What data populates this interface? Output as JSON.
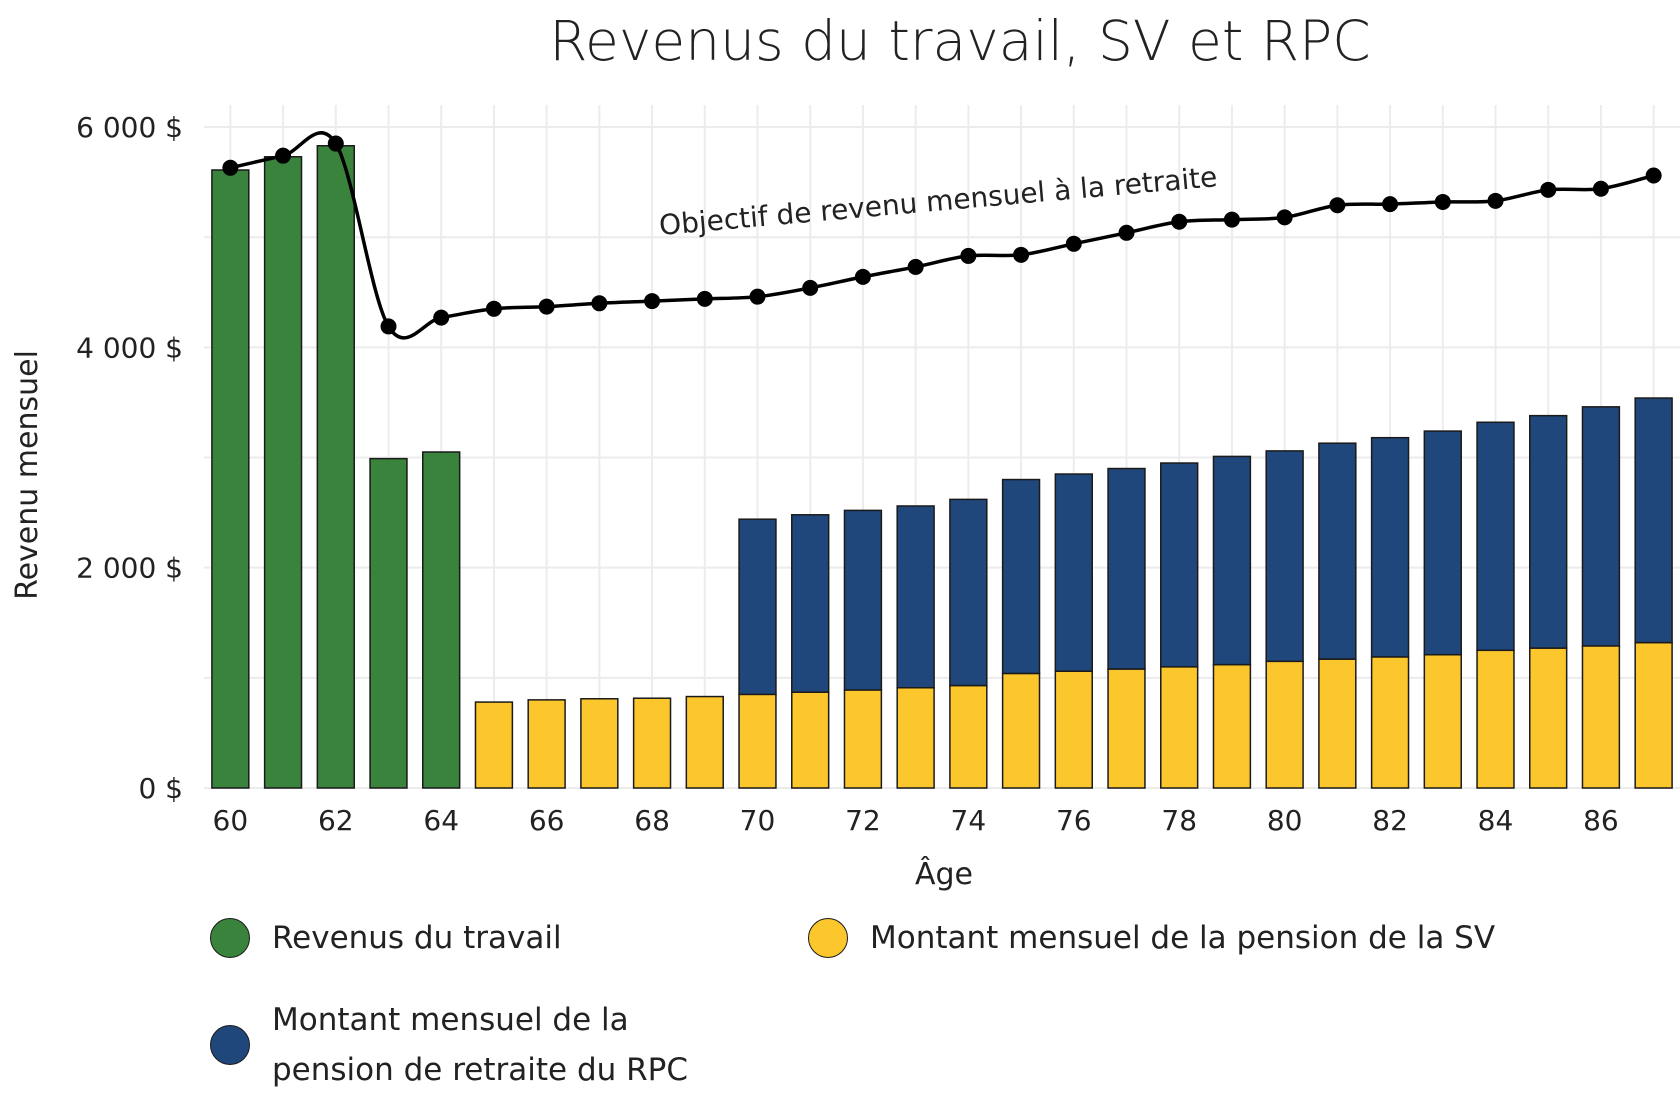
{
  "chart_data": {
    "type": "bar",
    "stacked": true,
    "title": "Revenus du travail, SV et RPC",
    "xlabel": "Âge",
    "ylabel": "Revenu mensuel",
    "xlim": [
      59.5,
      87.5
    ],
    "ylim": [
      0,
      6200
    ],
    "x_ticks": [
      60,
      62,
      64,
      66,
      68,
      70,
      72,
      74,
      76,
      78,
      80,
      82,
      84,
      86
    ],
    "y_ticks": [
      {
        "value": 0,
        "label": "0 $"
      },
      {
        "value": 2000,
        "label": "2 000 $"
      },
      {
        "value": 4000,
        "label": "4 000 $"
      },
      {
        "value": 6000,
        "label": "6 000 $"
      }
    ],
    "grid": true,
    "legend_position": "bottom",
    "categories": [
      60,
      61,
      62,
      63,
      64,
      65,
      66,
      67,
      68,
      69,
      70,
      71,
      72,
      73,
      74,
      75,
      76,
      77,
      78,
      79,
      80,
      81,
      82,
      83,
      84,
      85,
      86,
      87
    ],
    "series": [
      {
        "name": "Revenus du travail",
        "color": "#3a833c",
        "values": [
          5610,
          5730,
          5830,
          2990,
          3050,
          0,
          0,
          0,
          0,
          0,
          0,
          0,
          0,
          0,
          0,
          0,
          0,
          0,
          0,
          0,
          0,
          0,
          0,
          0,
          0,
          0,
          0,
          0
        ]
      },
      {
        "name": "Montant mensuel de la pension de la SV",
        "color": "#fcc62d",
        "values": [
          0,
          0,
          0,
          0,
          0,
          780,
          800,
          810,
          815,
          830,
          850,
          870,
          890,
          910,
          930,
          1040,
          1060,
          1080,
          1100,
          1120,
          1150,
          1170,
          1190,
          1210,
          1250,
          1270,
          1290,
          1320
        ]
      },
      {
        "name": "Montant mensuel de la pension de retraite du RPC",
        "color": "#20477b",
        "values": [
          0,
          0,
          0,
          0,
          0,
          0,
          0,
          0,
          0,
          0,
          1590,
          1610,
          1630,
          1650,
          1690,
          1760,
          1790,
          1820,
          1850,
          1890,
          1910,
          1960,
          1990,
          2030,
          2070,
          2110,
          2170,
          2220
        ]
      }
    ],
    "line": {
      "name": "Objectif de revenu mensuel à la retraite",
      "annotation": "Objectif de revenu mensuel à la retraite",
      "color": "#000000",
      "values": [
        5630,
        5740,
        5850,
        4190,
        4270,
        4350,
        4370,
        4400,
        4420,
        4440,
        4460,
        4540,
        4640,
        4730,
        4830,
        4840,
        4940,
        5040,
        5140,
        5160,
        5180,
        5290,
        5300,
        5320,
        5330,
        5430,
        5440,
        5560
      ]
    }
  },
  "legend_items": [
    {
      "label": "Revenus du travail",
      "color": "#3a833c"
    },
    {
      "label": "Montant mensuel de la pension de la SV",
      "color": "#fcc62d"
    },
    {
      "label": "Montant mensuel de la pension de retraite du RPC",
      "color": "#20477b"
    }
  ]
}
